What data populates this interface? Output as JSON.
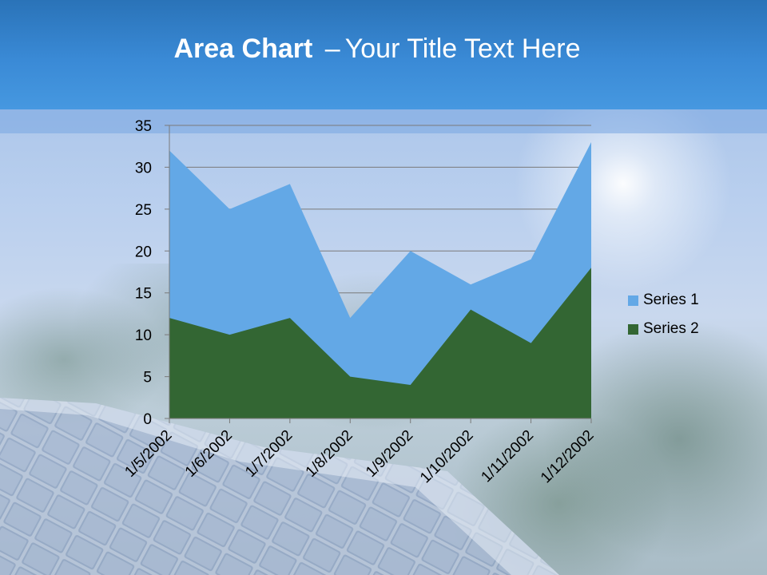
{
  "title": {
    "bold": "Area Chart",
    "separator": "–",
    "rest": "Your Title Text Here"
  },
  "colors": {
    "series1": "#63a8e6",
    "series2": "#336633",
    "gridline": "#7a7a7a",
    "axis_text": "#000000"
  },
  "chart_data": {
    "type": "area",
    "categories": [
      "1/5/2002",
      "1/6/2002",
      "1/7/2002",
      "1/8/2002",
      "1/9/2002",
      "1/10/2002",
      "1/11/2002",
      "1/12/2002"
    ],
    "series": [
      {
        "name": "Series 1",
        "values": [
          32,
          25,
          28,
          12,
          20,
          16,
          19,
          33
        ]
      },
      {
        "name": "Series 2",
        "values": [
          12,
          10,
          12,
          5,
          4,
          13,
          9,
          18
        ]
      }
    ],
    "ylim": [
      0,
      35
    ],
    "yticks": [
      0,
      5,
      10,
      15,
      20,
      25,
      30,
      35
    ],
    "grid": true,
    "legend": "right"
  }
}
